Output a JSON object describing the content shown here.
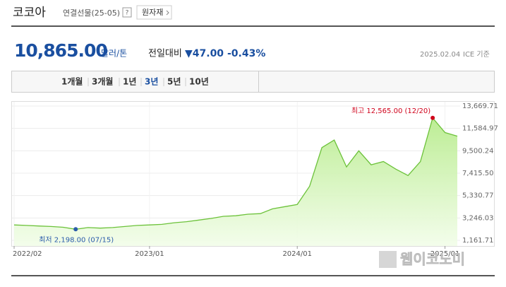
{
  "header": {
    "title": "코코아",
    "subtitle": "연결선물(25-05)",
    "help": "?",
    "category_button": "원자재"
  },
  "quote": {
    "price": "10,865.00",
    "unit": "달러/톤",
    "change_label": "전일대비",
    "change": "▼47.00",
    "change_pct": "-0.43%",
    "date": "2025.02.04",
    "source": "ICE 기준"
  },
  "tabs": [
    "1개월",
    "3개월",
    "1년",
    "3년",
    "5년",
    "10년"
  ],
  "active_tab": 3,
  "watermark": "웹이코노미",
  "chart_data": {
    "type": "area",
    "x": [
      "2022/02",
      "2022/03",
      "2022/04",
      "2022/05",
      "2022/06",
      "2022/07",
      "2022/08",
      "2022/09",
      "2022/10",
      "2022/11",
      "2022/12",
      "2023/01",
      "2023/02",
      "2023/03",
      "2023/04",
      "2023/05",
      "2023/06",
      "2023/07",
      "2023/08",
      "2023/09",
      "2023/10",
      "2023/11",
      "2023/12",
      "2024/01",
      "2024/02",
      "2024/03",
      "2024/04",
      "2024/05",
      "2024/06",
      "2024/07",
      "2024/08",
      "2024/09",
      "2024/10",
      "2024/11",
      "2024/12",
      "2025/01",
      "2025/02"
    ],
    "values": [
      2600,
      2550,
      2500,
      2450,
      2380,
      2198,
      2350,
      2300,
      2350,
      2450,
      2550,
      2600,
      2650,
      2800,
      2900,
      3050,
      3200,
      3400,
      3450,
      3600,
      3650,
      4100,
      4300,
      4500,
      6200,
      9800,
      10500,
      8000,
      9500,
      8200,
      8500,
      7800,
      7200,
      8500,
      12565,
      11200,
      10865
    ],
    "color": "#6cc23a",
    "xticks": [
      "2022/02",
      "2023/01",
      "2024/01",
      "2025/01"
    ],
    "ylim": [
      1161.71,
      13669.71
    ],
    "yticks": [
      {
        "value": 1161.71,
        "label": "1,161.71"
      },
      {
        "value": 3246.03,
        "label": "3,246.03"
      },
      {
        "value": 5330.77,
        "label": "5,330.77"
      },
      {
        "value": 7415.5,
        "label": "7,415.50"
      },
      {
        "value": 9500.24,
        "label": "9,500.24"
      },
      {
        "value": 11584.97,
        "label": "11,584.97"
      },
      {
        "value": 13669.71,
        "label": "13,669.71"
      }
    ],
    "grid": true,
    "annotations": [
      {
        "text": "최고 12,565.00 (12/20)",
        "value": 12565,
        "color": "#d0021b"
      },
      {
        "text": "최저 2,198.00 (07/15)",
        "value": 2198,
        "color": "#2a5caa"
      }
    ]
  }
}
